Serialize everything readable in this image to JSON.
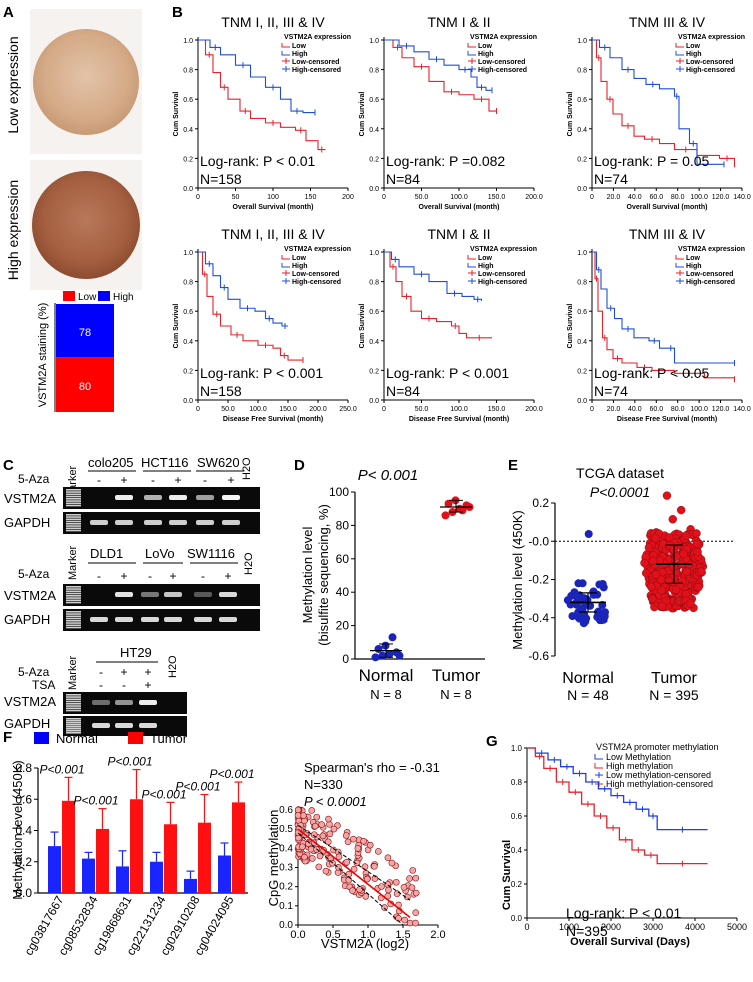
{
  "panels": {
    "A": {
      "letter": "A",
      "low_label": "Low expression",
      "high_label": "High expression",
      "legend_low": "Low",
      "legend_high": "High",
      "ylabel": "VSTM2A staining (%)",
      "bar": {
        "low_value": "80",
        "high_value": "78",
        "low_fraction": 0.506,
        "high_fraction": 0.494
      },
      "colors": {
        "low": "#ff0000",
        "high": "#0000ff"
      }
    },
    "B": {
      "letter": "B",
      "legend_title": "VSTM2A expression",
      "legend_items": [
        "Low",
        "High",
        "Low-censored",
        "High-censored"
      ],
      "ylabel": "Cum Survival",
      "yticks": [
        "1.0",
        "0.8",
        "0.6",
        "0.4",
        "0.2",
        "0.0"
      ],
      "plots": [
        {
          "title": "TNM I, II, III & IV",
          "logrank": "Log-rank: P < 0.01",
          "n": "N=158",
          "xlabel": "Overall Survival (month)",
          "xticks": [
            "0",
            "50",
            "100",
            "150",
            "200"
          ]
        },
        {
          "title": "TNM I & II",
          "logrank": "Log-rank: P =0.082",
          "n": "N=84",
          "xlabel": "Overall Survival (month)",
          "xticks": [
            "0",
            "50.0",
            "100.0",
            "150.0",
            "200.0"
          ]
        },
        {
          "title": "TNM III & IV",
          "logrank": "Log-rank: P = 0.05",
          "n": "N=74",
          "xlabel": "Overall Survival (month)",
          "xticks": [
            "0",
            "20.0",
            "40.0",
            "60.0",
            "80.0",
            "100.0",
            "120.0",
            "140.0"
          ]
        },
        {
          "title": "TNM I, II, III & IV",
          "logrank": "Log-rank: P < 0.001",
          "n": "N=158",
          "xlabel": "Disease Free Survival (month)",
          "xticks": [
            "0",
            "50.0",
            "100.0",
            "150.0",
            "200.0",
            "250.0"
          ]
        },
        {
          "title": "TNM I & II",
          "logrank": "Log-rank: P < 0.001",
          "n": "N=84",
          "xlabel": "Disease Free Survival (month)",
          "xticks": [
            "0",
            "50.0",
            "100.0",
            "150.0",
            "200.0"
          ]
        },
        {
          "title": "TNM III & IV",
          "logrank": "Log-rank: P < 0.05",
          "n": "N=74",
          "xlabel": "Disease Free Survival (month)",
          "xticks": [
            "0",
            "20.0",
            "40.0",
            "60.0",
            "80.0",
            "100.0",
            "120.0",
            "140.0"
          ]
        }
      ]
    },
    "C": {
      "letter": "C",
      "marker": "Marker",
      "h2o": "H2O",
      "aza": "5-Aza",
      "tsa": "TSA",
      "row_vstm": "VSTM2A",
      "row_gapdh": "GAPDH",
      "gel1_lines": [
        "colo205",
        "HCT116",
        "SW620"
      ],
      "gel2_lines": [
        "DLD1",
        "LoVo",
        "SW1116"
      ],
      "gel3_lines": [
        "HT29"
      ],
      "minus": "-",
      "plus": "+"
    },
    "D": {
      "letter": "D",
      "pvalue": "P< 0.001",
      "ylabel": "Methylation level (bisulfite sequencing, %)",
      "yticks": [
        "100",
        "80",
        "60",
        "40",
        "20",
        "0"
      ],
      "groups": [
        {
          "name": "Normal",
          "n": "N = 8",
          "mean": 5,
          "sd_low": 1,
          "sd_high": 9,
          "values": [
            1,
            2,
            3,
            4,
            6,
            8,
            13,
            2
          ]
        },
        {
          "name": "Tumor",
          "n": "N = 8",
          "mean": 91,
          "sd_low": 88,
          "sd_high": 95,
          "values": [
            86,
            88,
            90,
            92,
            93,
            95,
            89,
            91
          ]
        }
      ]
    },
    "E": {
      "letter": "E",
      "title": "TCGA dataset",
      "pvalue": "P<0.0001",
      "ylabel": "Methylation level (450K)",
      "yticks": [
        "0.2",
        "-0.0",
        "-0.2",
        "-0.4",
        "-0.6"
      ],
      "groups": [
        {
          "name": "Normal",
          "n": "N = 48",
          "mean": -0.32,
          "sd_low": -0.37,
          "sd_high": -0.27
        },
        {
          "name": "Tumor",
          "n": "N = 395",
          "mean": -0.12,
          "sd_low": -0.22,
          "sd_high": -0.02
        }
      ]
    },
    "F": {
      "letter": "F",
      "legend_normal": "Normal",
      "legend_tumor": "Tumor",
      "ylabel": "Methylation level (450K)",
      "yticks": [
        "0.8",
        "0.6",
        "0.4",
        "0.2",
        "0.0"
      ],
      "chart_data": {
        "type": "bar",
        "categories": [
          "cg03817667",
          "cg08532834",
          "cg19868631",
          "cg22131234",
          "cg02910208",
          "cg04024095"
        ],
        "series": [
          {
            "name": "Normal",
            "values": [
              0.3,
              0.22,
              0.17,
              0.2,
              0.09,
              0.24
            ],
            "err": [
              0.09,
              0.04,
              0.1,
              0.06,
              0.05,
              0.08
            ]
          },
          {
            "name": "Tumor",
            "values": [
              0.59,
              0.41,
              0.6,
              0.44,
              0.45,
              0.58
            ],
            "err": [
              0.15,
              0.13,
              0.19,
              0.14,
              0.18,
              0.13
            ]
          }
        ],
        "pvalues": [
          "P<0.001",
          "P<0.001",
          "P<0.001",
          "P<0.001",
          "P<0.001",
          "P<0.001"
        ],
        "ylim": [
          0,
          0.8
        ]
      },
      "scatter": {
        "rho": "Spearman's rho = -0.31",
        "n": "N=330",
        "p": "P < 0.0001",
        "ylabel": "CpG methylation",
        "xlabel": "VSTM2A (log2)",
        "yticks": [
          "0.6",
          "0.5",
          "0.4",
          "0.3",
          "0.2",
          "0.1",
          "0.0"
        ],
        "xticks": [
          "0.0",
          "0.5",
          "1.0",
          "1.5",
          "2.0"
        ]
      }
    },
    "G": {
      "letter": "G",
      "legend_title": "VSTM2A promoter methylation",
      "legend_items": [
        "Low Methylation",
        "High methylation",
        "Low methylation-censored",
        "High methylation-censored"
      ],
      "ylabel": "Cum Survival",
      "xlabel": "Overall Survival (Days)",
      "yticks": [
        "1.0",
        "0.8",
        "0.6",
        "0.4",
        "0.2",
        "0.0"
      ],
      "xticks": [
        "0",
        "1000",
        "2000",
        "3000",
        "4000",
        "5000"
      ],
      "logrank": "Log-rank: P < 0.01",
      "n": "N=395"
    }
  }
}
